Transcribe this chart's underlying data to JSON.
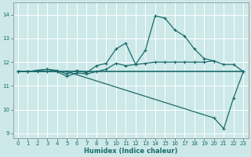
{
  "xlabel": "Humidex (Indice chaleur)",
  "bg_color": "#cce8e8",
  "grid_color": "#ffffff",
  "line_color": "#1a6b6b",
  "xlim": [
    -0.5,
    23.5
  ],
  "ylim": [
    8.8,
    14.5
  ],
  "yticks": [
    9,
    10,
    11,
    12,
    13,
    14
  ],
  "xticks": [
    0,
    1,
    2,
    3,
    4,
    5,
    6,
    7,
    8,
    9,
    10,
    11,
    12,
    13,
    14,
    15,
    16,
    17,
    18,
    19,
    20,
    21,
    22,
    23
  ],
  "series": [
    {
      "x": [
        0,
        23
      ],
      "y": [
        11.6,
        11.6
      ],
      "marker": false,
      "lw": 1.2
    },
    {
      "x": [
        0,
        1,
        2,
        3,
        4,
        5,
        20,
        21,
        22,
        23
      ],
      "y": [
        11.6,
        11.6,
        11.6,
        11.6,
        11.6,
        11.6,
        9.65,
        9.2,
        10.5,
        11.6
      ],
      "marker": true,
      "lw": 0.9
    },
    {
      "x": [
        0,
        1,
        2,
        3,
        4,
        5,
        6,
        7,
        8,
        9,
        10,
        11,
        12,
        13,
        14,
        15,
        16,
        17,
        18,
        19,
        20
      ],
      "y": [
        11.6,
        11.6,
        11.65,
        11.7,
        11.65,
        11.5,
        11.65,
        11.55,
        11.85,
        11.95,
        12.55,
        12.8,
        11.9,
        12.5,
        13.95,
        13.85,
        13.35,
        13.1,
        12.55,
        12.15,
        12.05
      ],
      "marker": true,
      "lw": 0.9
    },
    {
      "x": [
        0,
        1,
        2,
        3,
        4,
        5,
        6,
        7,
        8,
        9,
        10,
        11,
        12,
        13,
        14,
        15,
        16,
        17,
        18,
        19,
        20,
        21,
        22,
        23
      ],
      "y": [
        11.6,
        11.6,
        11.65,
        11.7,
        11.6,
        11.4,
        11.55,
        11.5,
        11.6,
        11.7,
        11.95,
        11.85,
        11.9,
        11.95,
        12.0,
        12.0,
        12.0,
        12.0,
        12.0,
        12.0,
        12.05,
        11.9,
        11.9,
        11.6
      ],
      "marker": true,
      "lw": 0.9
    }
  ]
}
